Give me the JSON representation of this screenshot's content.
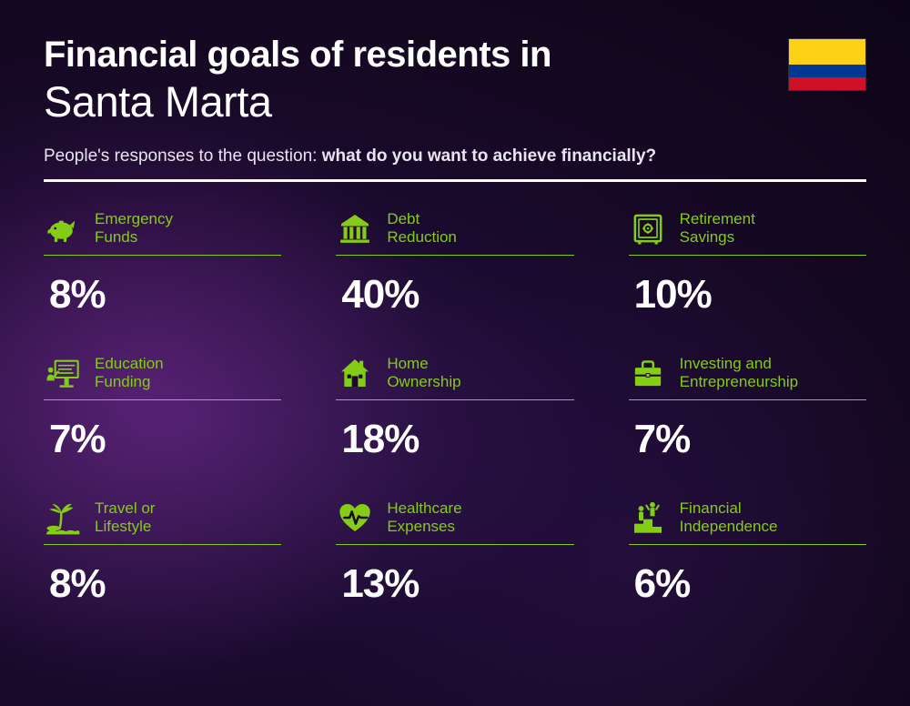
{
  "colors": {
    "accent": "#84cc16",
    "text": "#ffffff"
  },
  "flag": {
    "stripe1": "#fcd116",
    "stripe2": "#003893",
    "stripe3": "#ce1126"
  },
  "title_line1": "Financial goals of residents in",
  "title_line2": "Santa Marta",
  "subtitle_plain": "People's responses to the question: ",
  "subtitle_bold": "what do you want to achieve financially?",
  "items": [
    {
      "icon": "piggy-bank",
      "label": "Emergency Funds",
      "value": "8%"
    },
    {
      "icon": "bank",
      "label": "Debt Reduction",
      "value": "40%"
    },
    {
      "icon": "safe",
      "label": "Retirement Savings",
      "value": "10%"
    },
    {
      "icon": "education",
      "label": "Education Funding",
      "value": "7%"
    },
    {
      "icon": "house",
      "label": "Home Ownership",
      "value": "18%"
    },
    {
      "icon": "briefcase",
      "label": "Investing and Entrepreneurship",
      "value": "7%"
    },
    {
      "icon": "palm",
      "label": "Travel or Lifestyle",
      "value": "8%"
    },
    {
      "icon": "heart",
      "label": "Healthcare Expenses",
      "value": "13%"
    },
    {
      "icon": "podium",
      "label": "Financial Independence",
      "value": "6%"
    }
  ]
}
